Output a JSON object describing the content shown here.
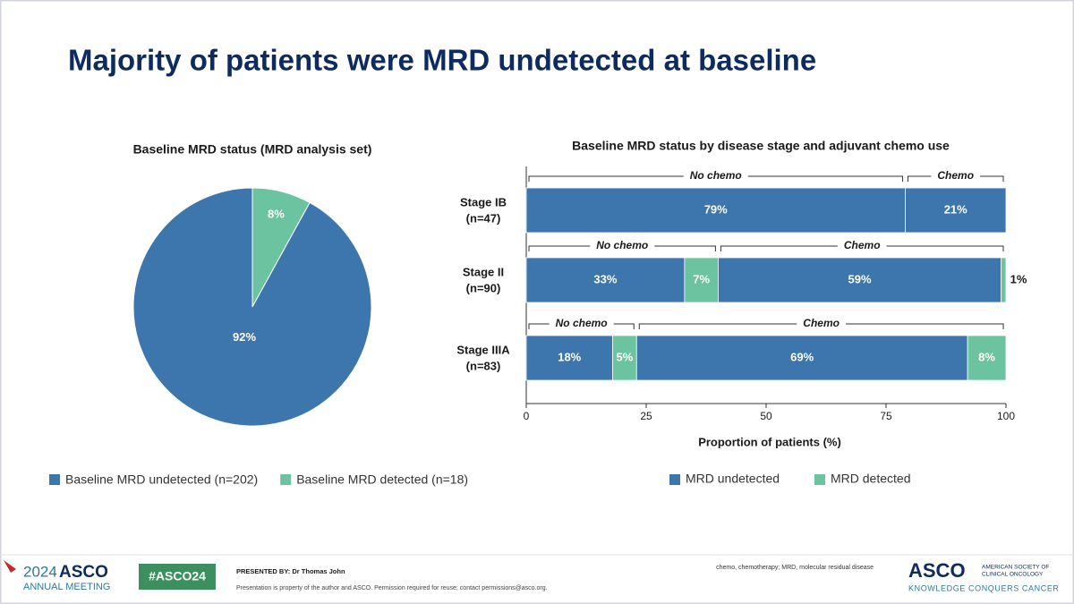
{
  "title": "Majority of patients were MRD undetected at baseline",
  "chart_data": [
    {
      "type": "pie",
      "title": "Baseline MRD status (MRD analysis set)",
      "categories": [
        "Baseline MRD undetected (n=202)",
        "Baseline MRD detected (n=18)"
      ],
      "values": [
        92,
        8
      ],
      "value_labels": [
        "92%",
        "8%"
      ],
      "colors": [
        "#3c76ad",
        "#6cc3a0"
      ]
    },
    {
      "type": "grouped-stacked-hbar",
      "title": "Baseline MRD status by disease stage and adjuvant chemo use",
      "categories": [
        "Stage IB",
        "Stage II",
        "Stage IIIA"
      ],
      "category_sublabels": [
        "(n=47)",
        "(n=90)",
        "(n=83)"
      ],
      "groups": [
        "No chemo",
        "Chemo"
      ],
      "series": [
        {
          "name": "MRD undetected",
          "color": "#3c76ad",
          "values": [
            [
              79,
              21
            ],
            [
              33,
              59
            ],
            [
              18,
              69
            ]
          ],
          "value_labels": [
            [
              "79%",
              "21%"
            ],
            [
              "33%",
              "59%"
            ],
            [
              "18%",
              "69%"
            ]
          ]
        },
        {
          "name": "MRD detected",
          "color": "#6cc3a0",
          "values": [
            [
              null,
              null
            ],
            [
              7,
              1
            ],
            [
              5,
              8
            ]
          ],
          "value_labels": [
            [
              null,
              null
            ],
            [
              "7%",
              "1%"
            ],
            [
              "5%",
              "8%"
            ]
          ]
        }
      ],
      "xlim": [
        0,
        100
      ],
      "xticks": [
        0,
        25,
        50,
        75,
        100
      ],
      "xlabel": "Proportion of patients (%)"
    }
  ],
  "footer": {
    "meeting_year": "2024",
    "meeting_name": "ASCO",
    "meeting_sub": "ANNUAL MEETING",
    "hashtag": "#ASCO24",
    "presenter": "PRESENTED BY: Dr Thomas John",
    "notice": "Presentation is property of the author and ASCO. Permission required for reuse; contact permissions@asco.org.",
    "abbreviations": "chemo, chemotherapy; MRD, molecular residual disease",
    "org_logo": "ASCO",
    "org_name_1": "AMERICAN SOCIETY OF",
    "org_name_2": "CLINICAL ONCOLOGY",
    "tagline": "KNOWLEDGE CONQUERS CANCER"
  }
}
